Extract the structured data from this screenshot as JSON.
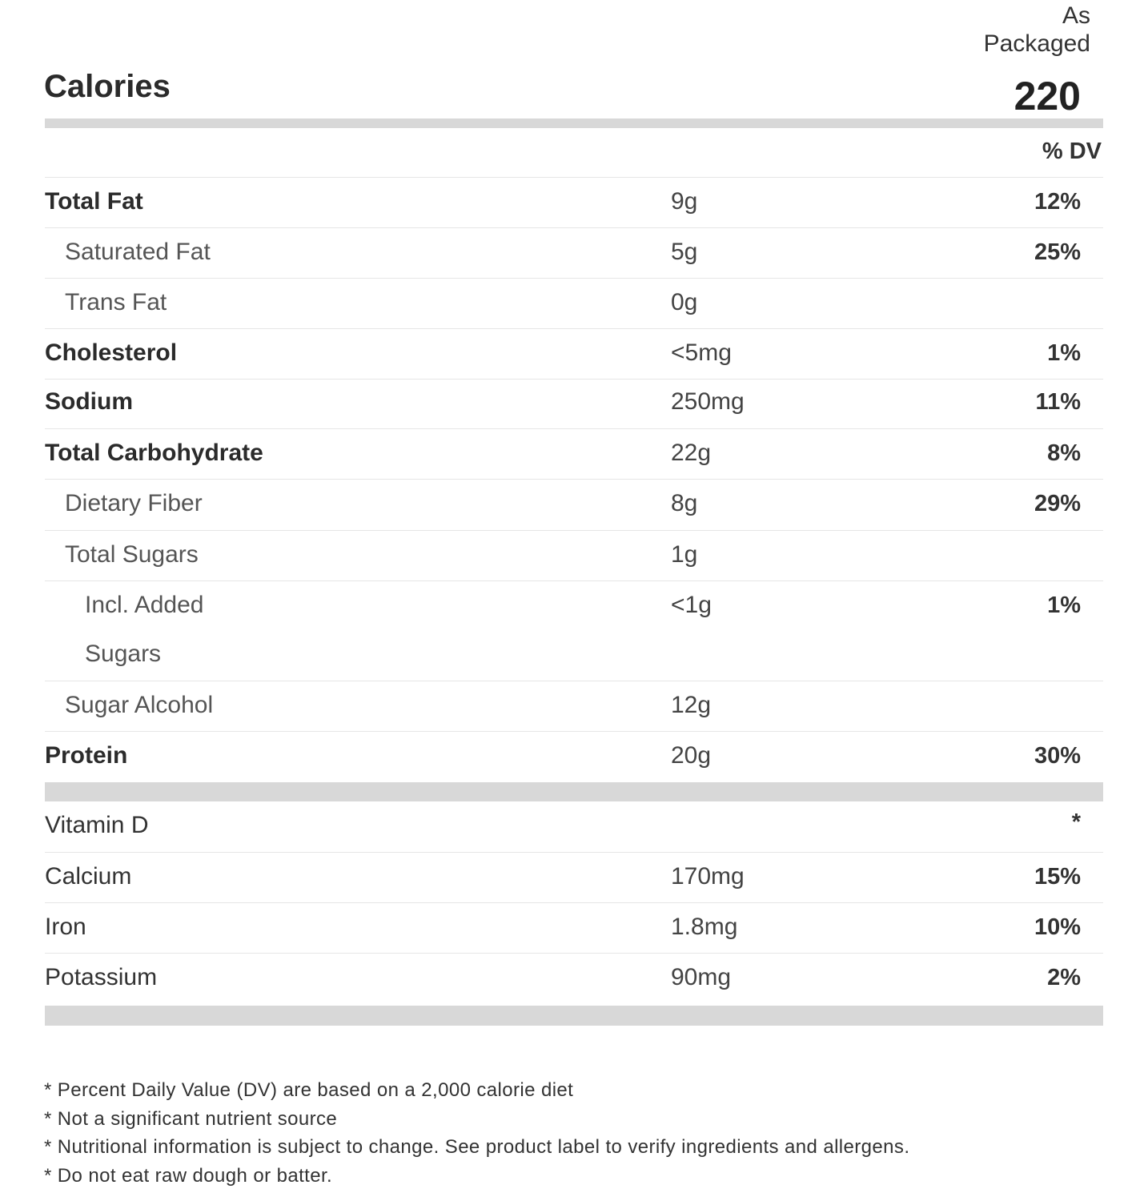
{
  "header": {
    "column_label_line1": "As",
    "column_label_line2": "Packaged",
    "calories_label": "Calories",
    "calories_value": "220",
    "dv_header": "% DV"
  },
  "nutrients": [
    {
      "name": "Total Fat",
      "amount": "9g",
      "dv": "12%"
    },
    {
      "name": "Saturated Fat",
      "amount": "5g",
      "dv": "25%"
    },
    {
      "name": "Trans Fat",
      "amount": "0g",
      "dv": ""
    },
    {
      "name": "Cholesterol",
      "amount": "<5mg",
      "dv": "1%"
    },
    {
      "name": "Sodium",
      "amount": "250mg",
      "dv": "11%"
    },
    {
      "name": "Total Carbohydrate",
      "amount": "22g",
      "dv": "8%"
    },
    {
      "name": "Dietary Fiber",
      "amount": "8g",
      "dv": "29%"
    },
    {
      "name": "Total Sugars",
      "amount": "1g",
      "dv": ""
    },
    {
      "name_line1": "Incl. Added",
      "name_line2": "Sugars",
      "amount": "<1g",
      "dv": "1%"
    },
    {
      "name": "Sugar Alcohol",
      "amount": "12g",
      "dv": ""
    },
    {
      "name": "Protein",
      "amount": "20g",
      "dv": "30%"
    }
  ],
  "vitamins": [
    {
      "name": "Vitamin D",
      "amount": "",
      "dv": "*"
    },
    {
      "name": "Calcium",
      "amount": "170mg",
      "dv": "15%"
    },
    {
      "name": "Iron",
      "amount": "1.8mg",
      "dv": "10%"
    },
    {
      "name": "Potassium",
      "amount": "90mg",
      "dv": "2%"
    }
  ],
  "footnotes": [
    "* Percent Daily Value (DV) are based on a 2,000 calorie diet",
    "* Not a significant nutrient source",
    "* Nutritional information is subject to change. See product label to verify ingredients and allergens.",
    "* Do not eat raw dough or batter."
  ]
}
